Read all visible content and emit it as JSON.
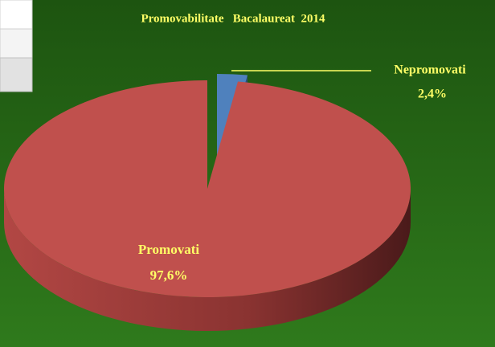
{
  "chart_data": {
    "type": "pie",
    "title": "Promovabilitate   Bacalaureat  2014",
    "categories": [
      "Nepromovati",
      "Promovati"
    ],
    "values": [
      2.4,
      97.6
    ],
    "value_labels": [
      "2,4%",
      "97,6%"
    ],
    "colors": [
      "#4f81bd",
      "#c0504d"
    ]
  }
}
